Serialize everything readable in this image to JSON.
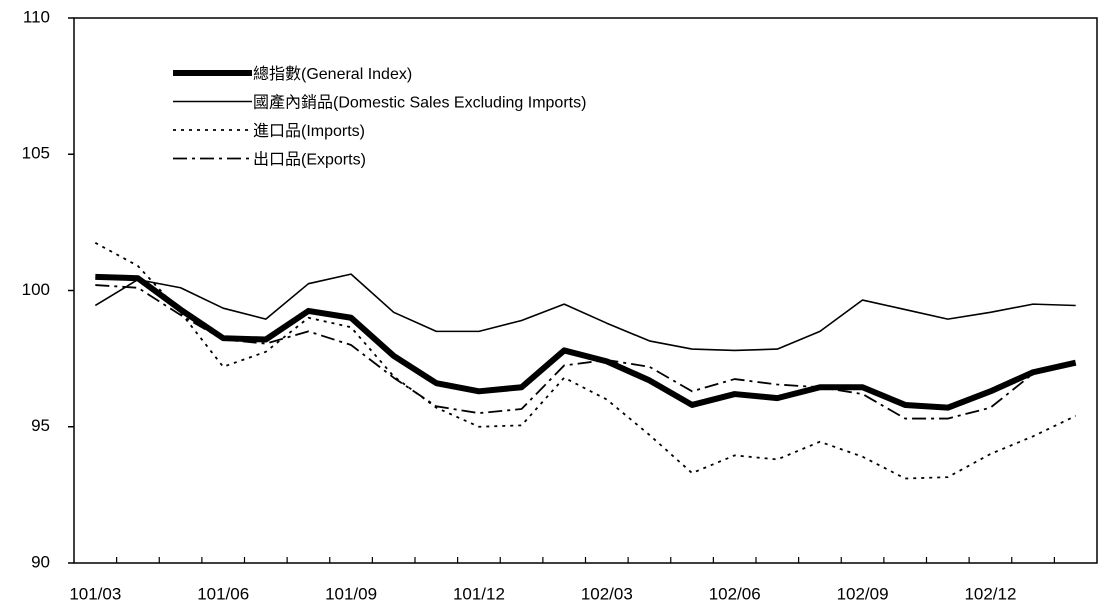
{
  "chart_data": {
    "type": "line",
    "categories": [
      "101/03",
      null,
      null,
      "101/06",
      null,
      null,
      "101/09",
      null,
      null,
      "101/12",
      null,
      null,
      "102/03",
      null,
      null,
      "102/06",
      null,
      null,
      "102/09",
      null,
      null,
      "102/12",
      null,
      null
    ],
    "series": [
      {
        "name": "總指數(General Index)",
        "color": "#000000",
        "width": 6,
        "dash": "none",
        "values": [
          100.5,
          100.45,
          99.3,
          98.25,
          98.2,
          99.25,
          99.0,
          97.6,
          96.6,
          96.3,
          96.45,
          97.8,
          97.4,
          96.7,
          95.8,
          96.2,
          96.05,
          96.45,
          96.45,
          95.8,
          95.7,
          96.3,
          97.0,
          97.35
        ]
      },
      {
        "name": "國產內銷品(Domestic Sales Excluding Imports)",
        "color": "#000000",
        "width": 1.6,
        "dash": "none",
        "values": [
          99.45,
          100.4,
          100.1,
          99.35,
          98.95,
          100.25,
          100.6,
          99.2,
          98.5,
          98.5,
          98.9,
          99.5,
          98.8,
          98.15,
          97.85,
          97.8,
          97.85,
          98.5,
          99.65,
          99.3,
          98.95,
          99.2,
          99.5,
          99.45
        ]
      },
      {
        "name": "進口品(Imports)",
        "color": "#000000",
        "width": 1.8,
        "dash": "3 5",
        "values": [
          101.75,
          100.9,
          99.2,
          97.2,
          97.75,
          99.0,
          98.65,
          96.85,
          95.7,
          95.0,
          95.05,
          96.8,
          96.0,
          94.7,
          93.3,
          93.95,
          93.8,
          94.45,
          93.9,
          93.1,
          93.15,
          94.0,
          94.65,
          95.4
        ]
      },
      {
        "name": "出口品(Exports)",
        "color": "#000000",
        "width": 1.8,
        "dash": "14 5 3 5",
        "values": [
          100.2,
          100.1,
          99.1,
          98.2,
          98.05,
          98.5,
          98.0,
          96.8,
          95.75,
          95.5,
          95.65,
          97.25,
          97.45,
          97.2,
          96.3,
          96.75,
          96.55,
          96.45,
          96.2,
          95.3,
          95.3,
          95.7,
          96.95,
          97.35
        ]
      }
    ],
    "ylim": [
      90,
      110
    ],
    "yticks": [
      90,
      95,
      100,
      105,
      110
    ],
    "grid": false,
    "legend": "upper left"
  }
}
